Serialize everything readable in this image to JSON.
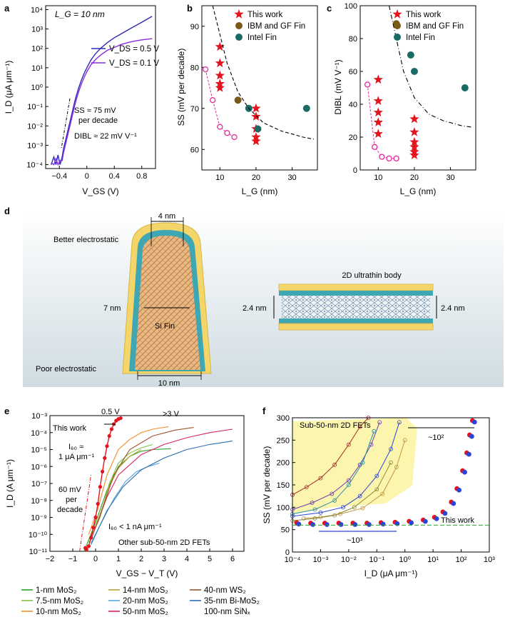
{
  "panel_labels": [
    "a",
    "b",
    "c",
    "d",
    "e",
    "f"
  ],
  "chart_data": [
    {
      "id": "a",
      "type": "line",
      "title": "",
      "annotation_lg": "L_G = 10 nm",
      "xlabel": "V_GS (V)",
      "ylabel": "I_D (μA μm⁻¹)",
      "xlim": [
        -0.6,
        1.0
      ],
      "ylim": [
        -4.2,
        4.2
      ],
      "yscale": "log",
      "xticks": [
        -0.4,
        0,
        0.4,
        0.8
      ],
      "xtick_labels": [
        "−0.4",
        "0",
        "0.4",
        "0.8"
      ],
      "yticks": [
        -4,
        -3,
        -2,
        -1,
        0,
        1,
        2,
        3,
        4
      ],
      "ytick_labels": [
        "10⁻⁴",
        "10⁻³",
        "10⁻²",
        "10⁻¹",
        "10⁰",
        "10¹",
        "10²",
        "10³",
        "10⁴"
      ],
      "legend": [
        "V_DS = 0.5 V",
        "V_DS = 0.1 V"
      ],
      "annotations": [
        "SS ≈ 75 mV",
        "per decade",
        "DIBL ≈ 22 mV V⁻¹"
      ],
      "series": [
        {
          "name": "V_DS = 0.5 V",
          "color": "#2b2bb5",
          "x": [
            -0.52,
            -0.48,
            -0.45,
            -0.42,
            -0.39,
            -0.36,
            -0.34,
            -0.32,
            -0.3,
            -0.28,
            -0.26,
            -0.24,
            -0.22,
            -0.2,
            -0.18,
            -0.15,
            -0.12,
            -0.08,
            -0.04,
            0.0,
            0.06,
            0.12,
            0.2,
            0.3,
            0.4,
            0.5,
            0.6,
            0.7,
            0.8,
            0.9,
            0.95
          ],
          "y": [
            -4.0,
            -3.6,
            -4.0,
            -3.5,
            -4.0,
            -3.6,
            -3.2,
            -2.9,
            -2.6,
            -2.3,
            -2.0,
            -1.7,
            -1.4,
            -1.1,
            -0.8,
            -0.4,
            -0.05,
            0.35,
            0.7,
            1.0,
            1.4,
            1.7,
            2.0,
            2.3,
            2.55,
            2.75,
            2.95,
            3.15,
            3.35,
            3.55,
            3.65
          ]
        },
        {
          "name": "V_DS = 0.1 V",
          "color": "#8a2be2",
          "x": [
            -0.52,
            -0.48,
            -0.45,
            -0.42,
            -0.39,
            -0.36,
            -0.34,
            -0.32,
            -0.3,
            -0.28,
            -0.26,
            -0.24,
            -0.22,
            -0.2,
            -0.18,
            -0.15,
            -0.12,
            -0.08,
            -0.04,
            0.0,
            0.06,
            0.12,
            0.2,
            0.3,
            0.4,
            0.5,
            0.6,
            0.7,
            0.8,
            0.9,
            0.95
          ],
          "y": [
            -3.9,
            -4.0,
            -3.7,
            -4.0,
            -3.8,
            -3.8,
            -3.4,
            -3.1,
            -2.8,
            -2.5,
            -2.2,
            -1.9,
            -1.6,
            -1.3,
            -1.0,
            -0.6,
            -0.25,
            0.15,
            0.5,
            0.8,
            1.15,
            1.4,
            1.65,
            1.9,
            2.05,
            2.2,
            2.3,
            2.38,
            2.44,
            2.48,
            2.5
          ]
        }
      ]
    },
    {
      "id": "b",
      "type": "scatter",
      "title": "",
      "xlabel": "L_G (nm)",
      "ylabel": "SS (mV per decade)",
      "xlim": [
        5,
        37
      ],
      "ylim": [
        55,
        95
      ],
      "xticks": [
        10,
        20,
        30
      ],
      "yticks": [
        60,
        70,
        80,
        90
      ],
      "legend": [
        "This work",
        "IBM and GF Fin",
        "Intel Fin"
      ],
      "series": [
        {
          "name": "This work",
          "marker": "star",
          "color": "#e4141e",
          "x": [
            10,
            10,
            10,
            10,
            10,
            20,
            20,
            20,
            20,
            20
          ],
          "y": [
            85,
            81,
            78,
            76,
            75,
            70,
            68,
            65,
            63,
            62
          ]
        },
        {
          "name": "IBM and GF Fin",
          "marker": "circle",
          "color": "#7b5a17",
          "x": [
            15
          ],
          "y": [
            72
          ]
        },
        {
          "name": "Intel Fin",
          "marker": "circle",
          "color": "#1a6b66",
          "x": [
            18,
            20.5,
            34
          ],
          "y": [
            70,
            65,
            70
          ]
        },
        {
          "name": "",
          "marker": "open-circle",
          "color": "#e0289a",
          "style": "dashed",
          "x": [
            6,
            8,
            10,
            12,
            14
          ],
          "y": [
            79.5,
            72,
            65.5,
            64,
            63
          ]
        },
        {
          "name": "",
          "marker": "none",
          "color": "#000000",
          "style": "dashed",
          "x": [
            8,
            10,
            12,
            15,
            18,
            22,
            27,
            33,
            36
          ],
          "y": [
            95,
            88,
            81,
            74,
            70,
            66.5,
            64.5,
            63,
            62.5
          ]
        }
      ]
    },
    {
      "id": "c",
      "type": "scatter",
      "title": "",
      "xlabel": "L_G (nm)",
      "ylabel": "DIBL (mV V⁻¹)",
      "xlim": [
        5,
        37
      ],
      "ylim": [
        0,
        100
      ],
      "xticks": [
        10,
        20,
        30
      ],
      "yticks": [
        0,
        20,
        40,
        60,
        80,
        100
      ],
      "legend": [
        "This work",
        "IBM and GF Fin",
        "Intel Fin"
      ],
      "series": [
        {
          "name": "This work",
          "marker": "star",
          "color": "#e4141e",
          "x": [
            10,
            10,
            10,
            10,
            10,
            20,
            20,
            20,
            20,
            20,
            20
          ],
          "y": [
            55,
            42,
            35,
            29,
            22,
            31,
            23,
            17,
            14,
            11,
            9
          ]
        },
        {
          "name": "IBM and GF Fin",
          "marker": "circle",
          "color": "#7b5a17",
          "x": [
            15
          ],
          "y": [
            89
          ]
        },
        {
          "name": "Intel Fin",
          "marker": "circle",
          "color": "#1a6b66",
          "x": [
            19,
            20,
            34
          ],
          "y": [
            70,
            60,
            50
          ]
        },
        {
          "name": "",
          "marker": "open-circle",
          "color": "#e0289a",
          "style": "dashed",
          "x": [
            7,
            9,
            11,
            13,
            15
          ],
          "y": [
            52,
            14,
            8,
            7,
            7
          ]
        },
        {
          "name": "",
          "marker": "none",
          "color": "#000000",
          "style": "dashdot",
          "x": [
            13,
            15,
            17,
            20,
            24,
            28,
            33,
            36
          ],
          "y": [
            100,
            80,
            60,
            44,
            34,
            30,
            27,
            26
          ]
        }
      ]
    },
    {
      "id": "e",
      "type": "line",
      "title": "",
      "xlabel": "V_GS − V_T (V)",
      "ylabel": "I_D (A μm⁻¹)",
      "xlim": [
        -2,
        6.5
      ],
      "ylim": [
        -11,
        -3
      ],
      "yscale": "log",
      "xticks": [
        -2,
        -1,
        0,
        1,
        2,
        3,
        4,
        5,
        6
      ],
      "xtick_labels": [
        "−2",
        "−1",
        "0",
        "1",
        "2",
        "3",
        "4",
        "5",
        "6"
      ],
      "yticks": [
        -11,
        -10,
        -9,
        -8,
        -7,
        -6,
        -5,
        -4,
        -3
      ],
      "ytick_labels": [
        "10⁻¹¹",
        "10⁻¹⁰",
        "10⁻⁹",
        "10⁻⁸",
        "10⁻⁷",
        "10⁻⁶",
        "10⁻⁵",
        "10⁻⁴",
        "10⁻³"
      ],
      "annotations": [
        "This work",
        "0.5 V",
        ">3 V",
        "I₆₀ ≈",
        "1 μA μm⁻¹",
        "60 mV",
        "per",
        "decade",
        "I₆₀ < 1 nA μm⁻¹",
        "Other sub-50-nm 2D FETs"
      ],
      "legend": [
        "1-nm MoS₂",
        "7.5-nm MoS₂",
        "10-nm MoS₂",
        "14-nm MoS₂",
        "20-nm MoS₂",
        "50-nm MoS₂",
        "40-nm WS₂",
        "35-nm Bi-MoS₂",
        "100-nm SiNₓ"
      ],
      "series": [
        {
          "name": "1-nm MoS₂",
          "color": "#2ca02c",
          "x": [
            -0.5,
            0,
            0.5,
            1,
            1.5,
            2,
            2.5,
            3.3
          ],
          "y": [
            -11,
            -9.3,
            -7.4,
            -6,
            -5.4,
            -5.1,
            -5.0,
            -4.95
          ]
        },
        {
          "name": "7.5-nm MoS₂",
          "color": "#7cc24a",
          "x": [
            -0.3,
            0.2,
            0.6,
            1,
            1.5,
            2,
            2.5
          ],
          "y": [
            -10.5,
            -9,
            -7,
            -5.8,
            -5.2,
            -4.9,
            -4.7
          ]
        },
        {
          "name": "10-nm MoS₂",
          "color": "#f28e2b",
          "x": [
            -0.3,
            0.1,
            0.5,
            1,
            1.5,
            2,
            2.5,
            3.2
          ],
          "y": [
            -10,
            -8.5,
            -6.5,
            -5.0,
            -4.4,
            -4.0,
            -3.8,
            -3.65
          ]
        },
        {
          "name": "14-nm MoS₂",
          "color": "#b8a632",
          "x": [
            -0.2,
            0.2,
            0.6,
            1,
            1.5,
            2
          ],
          "y": [
            -10.2,
            -8.8,
            -7.2,
            -6.1,
            -5.4,
            -5.0
          ]
        },
        {
          "name": "20-nm MoS₂",
          "color": "#55a6e0",
          "x": [
            -0.2,
            0.3,
            0.8,
            1.3,
            1.8,
            2.3,
            2.8
          ],
          "y": [
            -10.5,
            -9.2,
            -7.9,
            -6.9,
            -6.3,
            -6.0,
            -5.8
          ]
        },
        {
          "name": "50-nm MoS₂",
          "color": "#d62560",
          "x": [
            -0.2,
            0.5,
            1,
            2,
            3,
            4,
            5,
            6
          ],
          "y": [
            -10.3,
            -7.8,
            -6.5,
            -5.3,
            -4.7,
            -4.3,
            -4.0,
            -3.8
          ]
        },
        {
          "name": "40-nm WS₂",
          "color": "#a0522d",
          "x": [
            -0.2,
            0.3,
            0.8,
            1.5,
            2.5,
            3.5,
            4.3
          ],
          "y": [
            -10.3,
            -8.5,
            -6.5,
            -5.0,
            -4.2,
            -3.85,
            -3.7
          ]
        },
        {
          "name": "35-nm Bi-MoS₂",
          "color": "#2a6db0",
          "x": [
            -0.2,
            0.5,
            1.2,
            2,
            3,
            4,
            5,
            6
          ],
          "y": [
            -10.6,
            -8.6,
            -7.2,
            -6.2,
            -5.5,
            -5.0,
            -4.7,
            -4.5
          ]
        },
        {
          "name": "This work",
          "color": "#e4141e",
          "marker": "circle",
          "x": [
            -0.45,
            -0.4,
            -0.3,
            -0.2,
            -0.1,
            0.0,
            0.1,
            0.2,
            0.3,
            0.4,
            0.5,
            0.6,
            0.7,
            0.8,
            0.9,
            1.0,
            1.1
          ],
          "y": [
            -10.8,
            -10.9,
            -10.7,
            -10.2,
            -9.6,
            -9.0,
            -8.2,
            -7.2,
            -6.3,
            -5.5,
            -4.8,
            -4.2,
            -3.8,
            -3.5,
            -3.3,
            -3.2,
            -3.15
          ]
        }
      ]
    },
    {
      "id": "f",
      "type": "line",
      "title": "Sub-50-nm 2D FETs",
      "xlabel": "I_D (μA μm⁻¹)",
      "ylabel": "SS (mV per decade)",
      "xlim": [
        -4,
        3
      ],
      "ylim": [
        0,
        300
      ],
      "xscale": "log",
      "xticks": [
        -4,
        -3,
        -2,
        -1,
        0,
        1,
        2,
        3
      ],
      "xtick_labels": [
        "10⁻⁴",
        "10⁻³",
        "10⁻²",
        "10⁻¹",
        "10⁰",
        "10¹",
        "10²",
        "10³"
      ],
      "yticks": [
        0,
        50,
        100,
        150,
        200,
        250,
        300
      ],
      "annotations": [
        "~10²",
        "This work",
        "~10³"
      ],
      "series": [
        {
          "name": "This work",
          "color": "#2a45d6",
          "marker": "circle",
          "x": [
            -3.8,
            -3.3,
            -2.8,
            -2.3,
            -1.8,
            -1.3,
            -0.8,
            -0.3,
            0.2,
            0.7,
            1.1,
            1.4,
            1.7,
            1.9,
            2.1,
            2.25,
            2.35,
            2.45
          ],
          "y": [
            64,
            63,
            63,
            63,
            63,
            63,
            64,
            65,
            67,
            70,
            76,
            88,
            110,
            140,
            180,
            220,
            260,
            292
          ]
        },
        {
          "name": "",
          "color": "#2ca02c",
          "x": [
            -4,
            -3,
            -2,
            -1,
            0,
            1,
            2,
            3
          ],
          "y": [
            60,
            60,
            60,
            60,
            60,
            60,
            60,
            60
          ]
        }
      ]
    }
  ],
  "panel_d": {
    "labels": [
      "4 nm",
      "Better electrostatic",
      "7 nm",
      "Si Fin",
      "Poor electrostatic",
      "10 nm",
      "2D ultrathin body",
      "2.4 nm",
      "2.4 nm"
    ]
  }
}
